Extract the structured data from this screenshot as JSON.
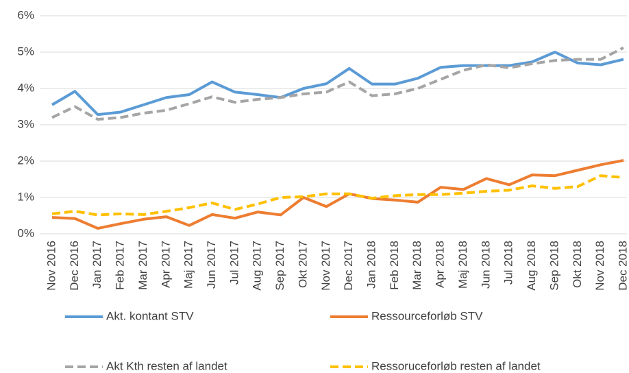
{
  "chart_data": {
    "type": "line",
    "categories": [
      "Nov 2016",
      "Dec 2016",
      "Jan 2017",
      "Feb 2017",
      "Mar 2017",
      "Apr 2017",
      "Maj 2017",
      "Jun 2017",
      "Jul 2017",
      "Aug 2017",
      "Sep 2017",
      "Okt 2017",
      "Nov 2017",
      "Dec 2017",
      "Jan 2018",
      "Feb 2018",
      "Mar 2018",
      "Apr 2018",
      "Maj 2018",
      "Jun 2018",
      "Jul 2018",
      "Aug 2018",
      "Sep 2018",
      "Okt 2018",
      "Nov 2018",
      "Dec 2018"
    ],
    "series": [
      {
        "name": "Akt. kontant STV",
        "color": "#5b9bd5",
        "dashed": false,
        "values": [
          3.55,
          3.92,
          3.28,
          3.35,
          3.55,
          3.75,
          3.83,
          4.18,
          3.9,
          3.83,
          3.75,
          4.0,
          4.13,
          4.55,
          4.12,
          4.12,
          4.28,
          4.58,
          4.63,
          4.63,
          4.63,
          4.73,
          5.0,
          4.7,
          4.65,
          4.8
        ]
      },
      {
        "name": "Ressourceforløb STV",
        "color": "#ed7d31",
        "dashed": false,
        "values": [
          0.45,
          0.42,
          0.15,
          0.28,
          0.4,
          0.47,
          0.23,
          0.53,
          0.43,
          0.6,
          0.52,
          1.0,
          0.75,
          1.1,
          0.97,
          0.93,
          0.87,
          1.28,
          1.22,
          1.52,
          1.35,
          1.62,
          1.6,
          1.75,
          1.9,
          2.02
        ]
      },
      {
        "name": "Akt Kth resten af landet",
        "color": "#a5a5a5",
        "dashed": true,
        "values": [
          3.2,
          3.5,
          3.15,
          3.2,
          3.32,
          3.4,
          3.58,
          3.77,
          3.62,
          3.7,
          3.75,
          3.85,
          3.9,
          4.18,
          3.8,
          3.85,
          4.0,
          4.25,
          4.5,
          4.65,
          4.57,
          4.68,
          4.77,
          4.8,
          4.8,
          5.12
        ]
      },
      {
        "name": "Ressoruceforløb resten af landet",
        "color": "#ffc000",
        "dashed": true,
        "values": [
          0.55,
          0.62,
          0.52,
          0.55,
          0.53,
          0.62,
          0.72,
          0.85,
          0.67,
          0.82,
          1.0,
          1.02,
          1.1,
          1.1,
          0.98,
          1.05,
          1.08,
          1.08,
          1.12,
          1.17,
          1.2,
          1.32,
          1.25,
          1.3,
          1.6,
          1.55
        ]
      }
    ],
    "ylim": [
      0,
      6
    ],
    "yticks": [
      {
        "value": 0,
        "label": "0%"
      },
      {
        "value": 1,
        "label": "1%"
      },
      {
        "value": 2,
        "label": "2%"
      },
      {
        "value": 3,
        "label": "3%"
      },
      {
        "value": 4,
        "label": "4%"
      },
      {
        "value": 5,
        "label": "5%"
      },
      {
        "value": 6,
        "label": "6%"
      }
    ],
    "grid": true,
    "legend": "bottom"
  }
}
